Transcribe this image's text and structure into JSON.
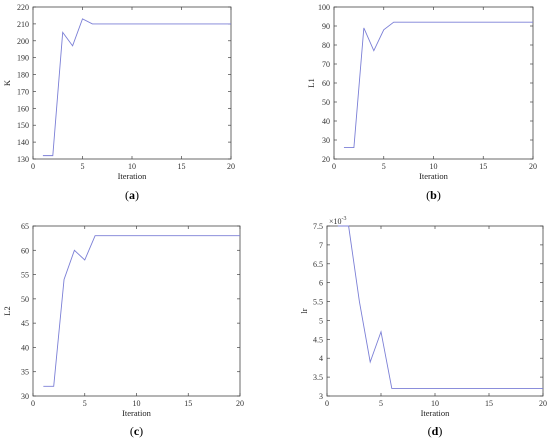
{
  "colors": {
    "line": "#7b7fd6",
    "axis": "#444444"
  },
  "chart_data": [
    {
      "type": "line",
      "panel_label": "a",
      "xlabel": "Iteration",
      "ylabel": "K",
      "xlim": [
        0,
        20
      ],
      "ylim": [
        130,
        220
      ],
      "xticks": [
        "0",
        "5",
        "10",
        "15",
        "20"
      ],
      "yticks": [
        "130",
        "140",
        "150",
        "160",
        "170",
        "180",
        "190",
        "200",
        "210",
        "220"
      ],
      "exponent": "",
      "x": [
        1,
        2,
        3,
        4,
        5,
        6,
        7,
        8,
        9,
        10,
        11,
        12,
        13,
        14,
        15,
        16,
        17,
        18,
        19,
        20
      ],
      "y": [
        132,
        132,
        205,
        197,
        213,
        210,
        210,
        210,
        210,
        210,
        210,
        210,
        210,
        210,
        210,
        210,
        210,
        210,
        210,
        210
      ]
    },
    {
      "type": "line",
      "panel_label": "b",
      "xlabel": "Iteration",
      "ylabel": "L1",
      "xlim": [
        0,
        20
      ],
      "ylim": [
        20,
        100
      ],
      "xticks": [
        "0",
        "5",
        "10",
        "15",
        "20"
      ],
      "yticks": [
        "20",
        "30",
        "40",
        "50",
        "60",
        "70",
        "80",
        "90",
        "100"
      ],
      "exponent": "",
      "x": [
        1,
        2,
        3,
        4,
        5,
        6,
        7,
        8,
        9,
        10,
        11,
        12,
        13,
        14,
        15,
        16,
        17,
        18,
        19,
        20
      ],
      "y": [
        26,
        26,
        89,
        77,
        88,
        92,
        92,
        92,
        92,
        92,
        92,
        92,
        92,
        92,
        92,
        92,
        92,
        92,
        92,
        92
      ]
    },
    {
      "type": "line",
      "panel_label": "c",
      "xlabel": "Iteration",
      "ylabel": "L2",
      "xlim": [
        0,
        20
      ],
      "ylim": [
        30,
        65
      ],
      "xticks": [
        "0",
        "5",
        "10",
        "15",
        "20"
      ],
      "yticks": [
        "30",
        "35",
        "40",
        "45",
        "50",
        "55",
        "60",
        "65"
      ],
      "exponent": "",
      "x": [
        1,
        2,
        3,
        4,
        5,
        6,
        7,
        8,
        9,
        10,
        11,
        12,
        13,
        14,
        15,
        16,
        17,
        18,
        19,
        20
      ],
      "y": [
        32,
        32,
        54,
        60,
        58,
        63,
        63,
        63,
        63,
        63,
        63,
        63,
        63,
        63,
        63,
        63,
        63,
        63,
        63,
        63
      ]
    },
    {
      "type": "line",
      "panel_label": "d",
      "xlabel": "Iteration",
      "ylabel": "lr",
      "xlim": [
        0,
        20
      ],
      "ylim": [
        3,
        7.5
      ],
      "xticks": [
        "0",
        "5",
        "10",
        "15",
        "20"
      ],
      "yticks": [
        "3",
        "3.5",
        "4",
        "4.5",
        "5",
        "5.5",
        "6",
        "6.5",
        "7",
        "7.5"
      ],
      "exponent": "-3",
      "x": [
        1,
        2,
        3,
        4,
        5,
        6,
        7,
        8,
        9,
        10,
        11,
        12,
        13,
        14,
        15,
        16,
        17,
        18,
        19,
        20
      ],
      "y": [
        7.5,
        7.5,
        5.5,
        3.9,
        4.7,
        3.2,
        3.2,
        3.2,
        3.2,
        3.2,
        3.2,
        3.2,
        3.2,
        3.2,
        3.2,
        3.2,
        3.2,
        3.2,
        3.2,
        3.2
      ]
    }
  ]
}
